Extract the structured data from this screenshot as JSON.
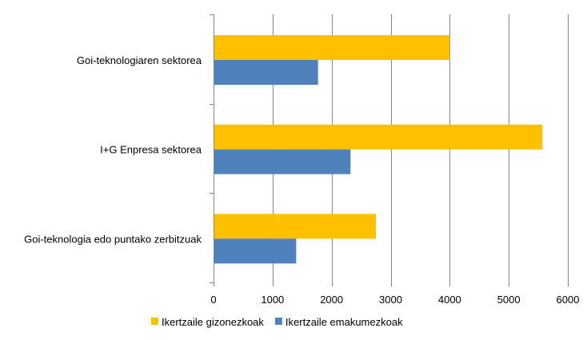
{
  "chart_data": {
    "type": "bar",
    "orientation": "horizontal",
    "categories": [
      "Goi-teknologiaren sektorea",
      "I+G Enpresa sektorea",
      "Goi-teknologia edo puntako zerbitzuak"
    ],
    "series": [
      {
        "name": "Ikertzaile gizonezkoak",
        "color": "#FFC000",
        "values": [
          4000,
          5570,
          2750
        ]
      },
      {
        "name": "Ikertzaile emakumezkoak",
        "color": "#4F81BD",
        "values": [
          1770,
          2320,
          1400
        ]
      }
    ],
    "xlim": [
      0,
      6000
    ],
    "xticks": [
      0,
      1000,
      2000,
      3000,
      4000,
      5000,
      6000
    ],
    "title": "",
    "xlabel": "",
    "ylabel": "",
    "grid": "vertical",
    "legend_position": "bottom"
  }
}
